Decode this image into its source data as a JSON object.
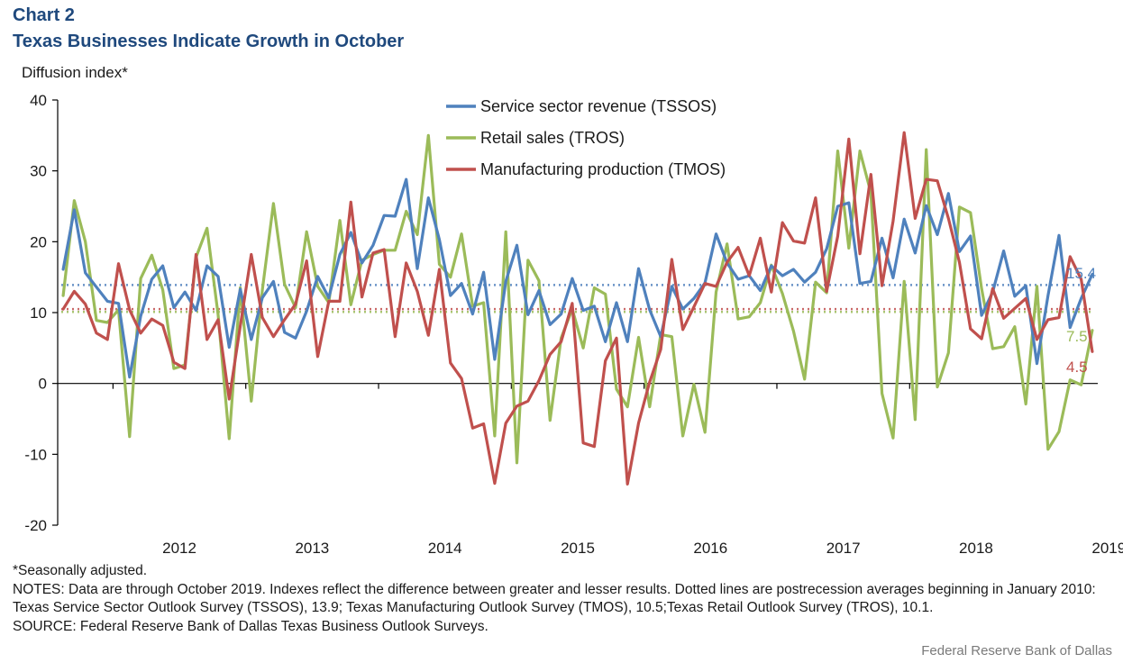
{
  "header": {
    "chart_number": "Chart 2",
    "title": "Texas Businesses Indicate Growth in October",
    "y_axis_label": "Diffusion index*"
  },
  "footer": {
    "note_seasonal": "*Seasonally adjusted.",
    "notes": "NOTES: Data are through October 2019. Indexes reflect the difference between greater and lesser results. Dotted lines are postrecession averages beginning in January 2010: Texas Service Sector Outlook Survey (TSSOS), 13.9; Texas Manufacturing Outlook Survey (TMOS), 10.5;Texas Retail Outlook Survey (TROS), 10.1.",
    "source": "SOURCE: Federal Reserve Bank of Dallas Texas Business Outlook Surveys.",
    "credit": "Federal Reserve Bank of Dallas"
  },
  "chart_data": {
    "type": "line",
    "x_start": "Aug 2011",
    "x_end": "Oct 2019",
    "x_ticks": [
      "2012",
      "2013",
      "2014",
      "2015",
      "2016",
      "2017",
      "2018",
      "2019"
    ],
    "ylim": [
      -20,
      40
    ],
    "y_ticks": [
      -20,
      -10,
      0,
      10,
      20,
      30,
      40
    ],
    "legend_position": "top-center",
    "series": [
      {
        "name": "Service sector revenue (TSSOS)",
        "color": "#4f81bd",
        "average": 13.9,
        "end_label": "15.4",
        "values": [
          16.1,
          24.5,
          15.6,
          13.6,
          11.6,
          11.3,
          0.9,
          9.5,
          14.7,
          16.6,
          10.7,
          12.9,
          10.3,
          16.6,
          15.1,
          5.1,
          13.3,
          6.2,
          12.1,
          14.4,
          7.2,
          6.4,
          10.2,
          15.1,
          12.1,
          18.2,
          21.3,
          17.0,
          19.5,
          23.7,
          23.6,
          28.8,
          16.2,
          26.2,
          20.3,
          12.4,
          14.1,
          9.8,
          15.7,
          3.4,
          14.4,
          19.5,
          9.7,
          13.1,
          8.3,
          9.8,
          14.8,
          10.3,
          10.9,
          5.9,
          11.4,
          5.9,
          16.2,
          10.4,
          6.6,
          13.7,
          10.5,
          12.0,
          14.2,
          21.1,
          17.0,
          14.7,
          15.2,
          13.1,
          16.6,
          15.2,
          16.1,
          14.3,
          15.7,
          19.0,
          25.0,
          25.5,
          14.1,
          14.4,
          20.5,
          14.9,
          23.2,
          18.4,
          25.1,
          21.0,
          26.8,
          18.6,
          20.8,
          9.6,
          12.9,
          18.7,
          12.3,
          13.8,
          2.8,
          12.4,
          20.9,
          7.9,
          12.0,
          15.4
        ]
      },
      {
        "name": "Retail sales (TROS)",
        "color": "#9bbb59",
        "average": 10.1,
        "end_label": "7.5",
        "values": [
          12.4,
          25.8,
          20.0,
          8.9,
          8.6,
          10.4,
          -7.5,
          14.8,
          18.1,
          13.2,
          2.1,
          2.6,
          17.8,
          21.9,
          9.7,
          -7.8,
          13.5,
          -2.5,
          13.2,
          25.4,
          14.0,
          10.7,
          21.4,
          13.7,
          11.4,
          23.0,
          11.1,
          17.4,
          18.2,
          18.8,
          18.8,
          24.3,
          21.0,
          35.0,
          16.8,
          15.0,
          21.1,
          10.9,
          11.4,
          -7.4,
          21.4,
          -11.2,
          17.4,
          14.5,
          -5.2,
          6.4,
          10.5,
          5.0,
          13.5,
          12.6,
          -0.8,
          -3.3,
          6.5,
          -3.3,
          6.9,
          6.6,
          -7.4,
          -0.1,
          -6.9,
          12.9,
          19.7,
          9.1,
          9.4,
          11.4,
          16.7,
          12.7,
          7.4,
          0.6,
          14.3,
          12.8,
          32.8,
          19.1,
          32.8,
          26.9,
          -1.4,
          -7.7,
          14.4,
          -5.1,
          33.0,
          -0.5,
          4.3,
          24.9,
          24.1,
          13.4,
          4.9,
          5.2,
          8.0,
          -2.9,
          13.7,
          -9.3,
          -6.8,
          0.5,
          -0.2,
          7.5
        ]
      },
      {
        "name": "Manufacturing production (TMOS)",
        "color": "#c0504d",
        "average": 10.5,
        "end_label": "4.5",
        "values": [
          10.5,
          13.0,
          11.2,
          7.1,
          6.2,
          16.9,
          10.4,
          7.1,
          9.1,
          8.2,
          3.0,
          2.1,
          18.2,
          6.2,
          9.0,
          -2.2,
          8.1,
          18.2,
          9.3,
          6.6,
          9.0,
          11.2,
          17.3,
          3.8,
          11.6,
          11.6,
          25.6,
          12.2,
          18.4,
          18.9,
          6.6,
          17.0,
          13.0,
          6.8,
          16.1,
          2.9,
          0.7,
          -6.3,
          -5.7,
          -14.1,
          -5.6,
          -3.2,
          -2.5,
          0.4,
          4.1,
          5.9,
          11.3,
          -8.4,
          -8.9,
          3.2,
          6.4,
          -14.2,
          -5.6,
          0.2,
          4.8,
          17.5,
          7.6,
          10.8,
          14.1,
          13.7,
          17.1,
          19.2,
          15.2,
          20.5,
          12.9,
          22.7,
          20.1,
          19.8,
          26.2,
          13.0,
          20.8,
          34.5,
          18.3,
          29.5,
          13.8,
          22.9,
          35.4,
          23.3,
          28.8,
          28.6,
          23.3,
          17.1,
          7.7,
          6.3,
          13.4,
          9.2,
          10.6,
          12.0,
          6.2,
          9.0,
          9.3,
          17.9,
          14.7,
          4.5
        ]
      }
    ]
  }
}
